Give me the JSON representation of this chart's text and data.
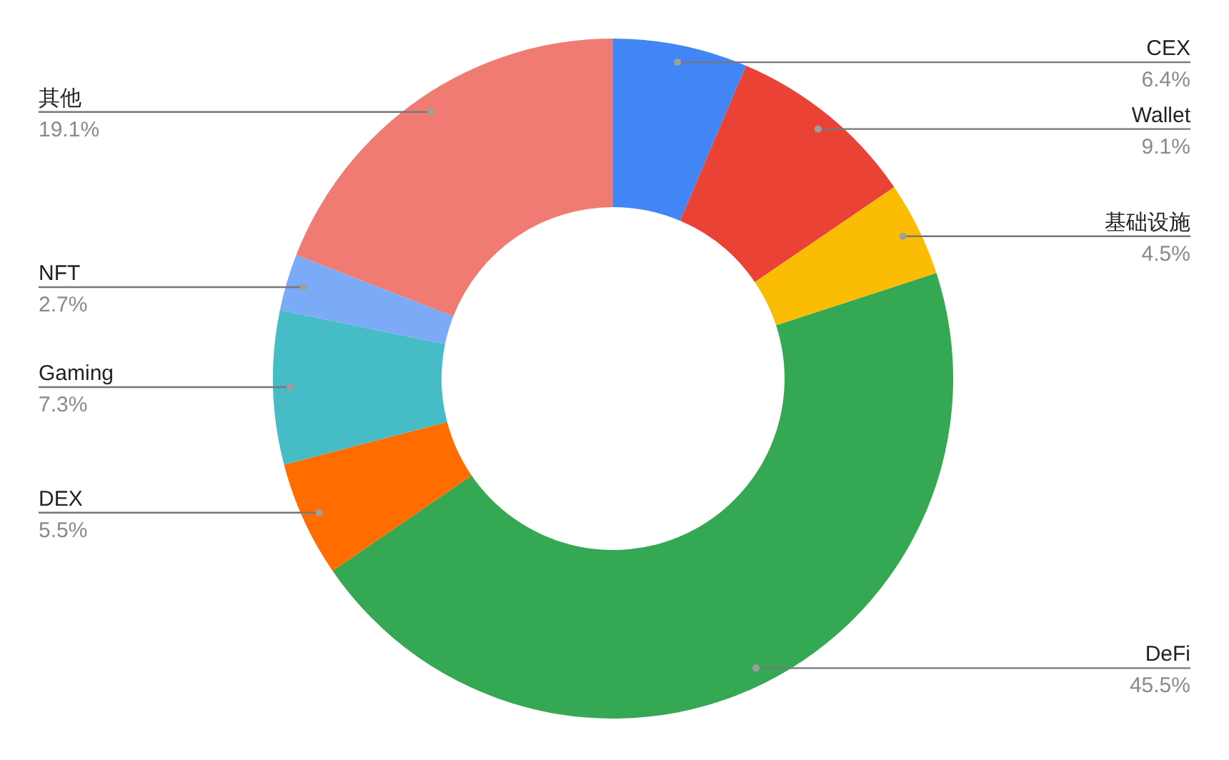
{
  "chart_data": {
    "type": "donut",
    "categories": [
      "CEX",
      "Wallet",
      "基础设施",
      "DeFi",
      "DEX",
      "Gaming",
      "NFT",
      "其他"
    ],
    "values": [
      6.4,
      9.1,
      4.5,
      45.5,
      5.5,
      7.3,
      2.7,
      19.1
    ],
    "colors": [
      "#4285f4",
      "#ea4335",
      "#fbbc04",
      "#34a853",
      "#ff6d01",
      "#46bdc6",
      "#7baaf7",
      "#f07b72"
    ],
    "value_labels": [
      "6.4%",
      "9.1%",
      "4.5%",
      "45.5%",
      "5.5%",
      "7.3%",
      "2.7%",
      "19.1%"
    ],
    "legend": false
  }
}
